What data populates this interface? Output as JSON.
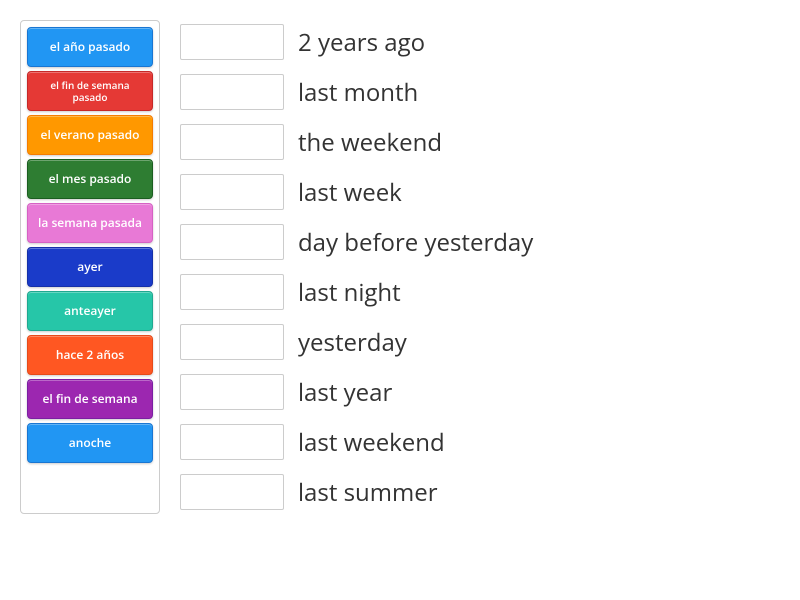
{
  "tiles": [
    {
      "label": "el año pasado",
      "bgColor": "#2196f3",
      "borderColor": "#1976d2"
    },
    {
      "label": "el fin de semana pasado",
      "bgColor": "#e53935",
      "borderColor": "#c62828",
      "fontSize": "10px"
    },
    {
      "label": "el verano pasado",
      "bgColor": "#ff9800",
      "borderColor": "#f57c00"
    },
    {
      "label": "el mes pasado",
      "bgColor": "#2e7d32",
      "borderColor": "#1b5e20"
    },
    {
      "label": "la semana pasada",
      "bgColor": "#e879d6",
      "borderColor": "#d661c4"
    },
    {
      "label": "ayer",
      "bgColor": "#1a3bc9",
      "borderColor": "#1530a8"
    },
    {
      "label": "anteayer",
      "bgColor": "#26c6a8",
      "borderColor": "#1fa890"
    },
    {
      "label": "hace 2 años",
      "bgColor": "#ff5722",
      "borderColor": "#e64a19"
    },
    {
      "label": "el fin de semana",
      "bgColor": "#9c27b0",
      "borderColor": "#7b1fa2"
    },
    {
      "label": "anoche",
      "bgColor": "#2196f3",
      "borderColor": "#1976d2"
    }
  ],
  "matches": [
    {
      "label": "2 years ago"
    },
    {
      "label": "last month"
    },
    {
      "label": "the weekend"
    },
    {
      "label": "last week"
    },
    {
      "label": "day before yesterday"
    },
    {
      "label": "last night"
    },
    {
      "label": "yesterday"
    },
    {
      "label": "last year"
    },
    {
      "label": "last weekend"
    },
    {
      "label": "last summer"
    }
  ]
}
